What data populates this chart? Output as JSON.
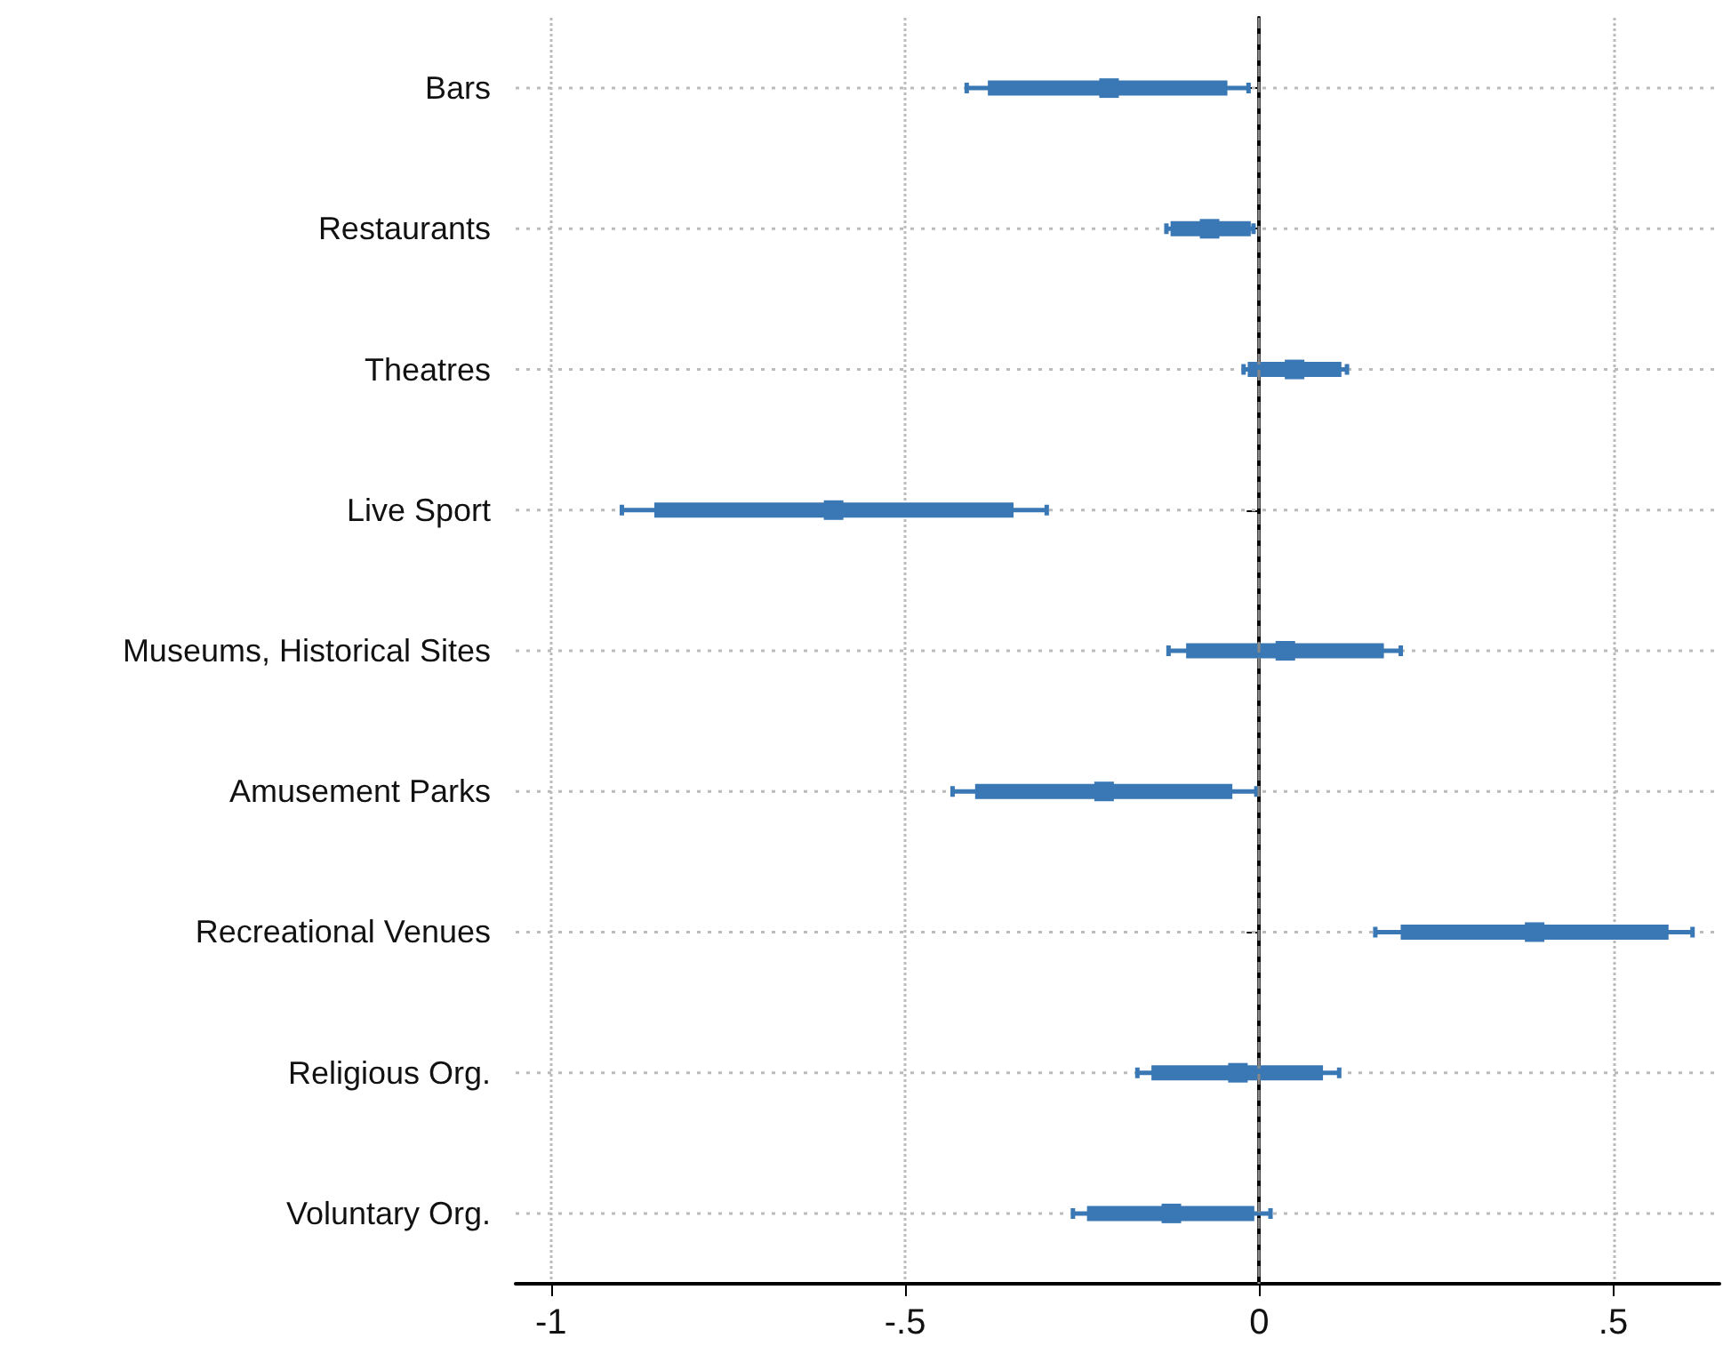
{
  "chart_data": {
    "type": "box",
    "categories": [
      "Bars",
      "Restaurants",
      "Theatres",
      "Live Sport",
      "Museums, Historical Sites",
      "Amusement Parks",
      "Recreational Venues",
      "Religious Org.",
      "Voluntary Org."
    ],
    "series": [
      {
        "color": "#3a78b5",
        "boxes": [
          {
            "low": -0.413,
            "q1": -0.38,
            "median": -0.212,
            "q3": -0.048,
            "high": -0.015
          },
          {
            "low": -0.131,
            "q1": -0.122,
            "median": -0.07,
            "q3": -0.015,
            "high": -0.008
          },
          {
            "low": -0.022,
            "q1": -0.013,
            "median": 0.05,
            "q3": 0.113,
            "high": 0.124
          },
          {
            "low": -0.9,
            "q1": -0.851,
            "median": -0.601,
            "q3": -0.35,
            "high": -0.3
          },
          {
            "low": -0.128,
            "q1": -0.1,
            "median": 0.037,
            "q3": 0.173,
            "high": 0.2
          },
          {
            "low": -0.433,
            "q1": -0.398,
            "median": -0.219,
            "q3": -0.041,
            "high": -0.004
          },
          {
            "low": 0.164,
            "q1": 0.203,
            "median": 0.389,
            "q3": 0.575,
            "high": 0.612
          },
          {
            "low": -0.172,
            "q1": -0.149,
            "median": -0.03,
            "q3": 0.087,
            "high": 0.113
          },
          {
            "low": -0.263,
            "q1": -0.24,
            "median": -0.124,
            "q3": -0.01,
            "high": 0.016
          }
        ]
      },
      {
        "type": "scatter",
        "color": "#3a78b5",
        "marker": "square",
        "x": [
          "Bars",
          "Restaurants",
          "Theatres",
          "Live Sport",
          "Museums, Historical Sites",
          "Amusement Parks",
          "Recreational Venues",
          "Religious Org.",
          "Voluntary Org."
        ],
        "values": [
          -0.212,
          -0.07,
          0.05,
          -0.601,
          0.037,
          -0.219,
          0.389,
          -0.03,
          -0.124
        ]
      }
    ],
    "orientation": "horizontal",
    "xlim": [
      -1.05,
      0.65
    ],
    "xticks": [
      -1,
      {
        "value": -0.5,
        "label": "-.5"
      },
      0,
      {
        "value": 0.5,
        "label": ".5"
      }
    ],
    "grid": true,
    "ref_lines": [
      {
        "axis": "x",
        "value": 0,
        "color": "#888888",
        "line_style": "dashed"
      }
    ]
  }
}
